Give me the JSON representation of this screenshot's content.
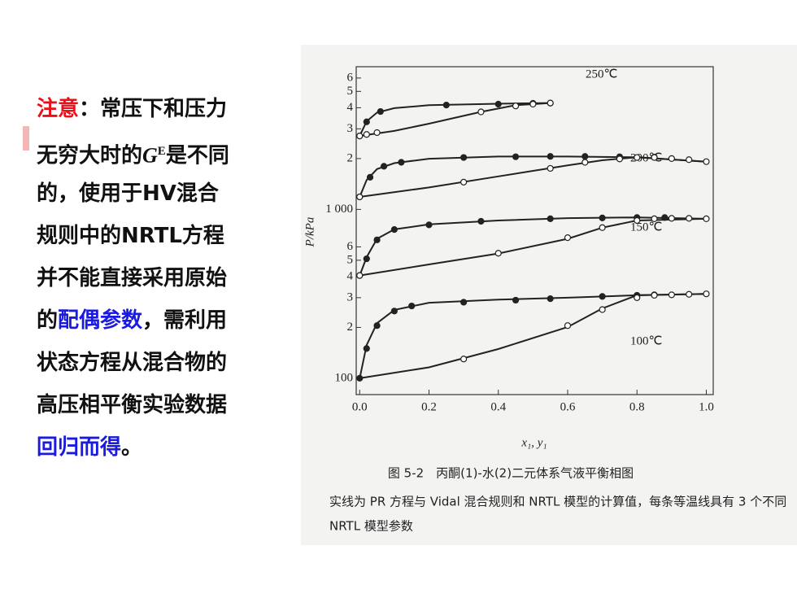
{
  "text": {
    "lines": [
      [
        {
          "text": "注意",
          "color": "#e8101a"
        },
        {
          "text": "：常压下和压力"
        }
      ],
      [
        {
          "text": "无穷大时的"
        },
        {
          "text": "G",
          "style": "italic"
        },
        {
          "text": "E",
          "style": "sup"
        },
        {
          "text": "是不同"
        }
      ],
      [
        {
          "text": "的，使用于HV混合"
        }
      ],
      [
        {
          "text": "规则中的NRTL方程"
        }
      ],
      [
        {
          "text": "并不能直接采用原始"
        }
      ],
      [
        {
          "text": "的"
        },
        {
          "text": "配偶参数",
          "color": "#1a1ae0"
        },
        {
          "text": "，需利用"
        }
      ],
      [
        {
          "text": "状态方程从混合物的"
        }
      ],
      [
        {
          "text": "高压相平衡实验数据"
        }
      ],
      [
        {
          "text": "回归而得",
          "color": "#1a1ae0"
        },
        {
          "text": "。"
        }
      ]
    ]
  },
  "chart_data": {
    "type": "line",
    "ylog": true,
    "ylabel": "P/kPa",
    "xlabel": "x₁, y₁",
    "caption": "图 5-2　丙酮(1)-水(2)二元体系气液平衡相图",
    "note": [
      "实线为 PR 方程与 Vidal 混合规则和 NRTL 模型的计算值，每条等温线具有 3 个不同",
      "NRTL 模型参数"
    ],
    "annotations": [
      "250℃",
      "200℃",
      "150℃",
      "100℃"
    ],
    "xlim": [
      -0.01,
      1.02
    ],
    "ylim": [
      80,
      7000
    ],
    "xticks": [
      {
        "value": 0,
        "label": "0.0"
      },
      {
        "value": 0.2,
        "label": "0.2"
      },
      {
        "value": 0.4,
        "label": "0.4"
      },
      {
        "value": 0.6,
        "label": "0.6"
      },
      {
        "value": 0.8,
        "label": "0.8"
      },
      {
        "value": 1,
        "label": "1.0"
      }
    ],
    "yticks": [
      100,
      {
        "value": 200,
        "label": "2"
      },
      {
        "value": 300,
        "label": "3"
      },
      {
        "value": 400,
        "label": "4"
      },
      {
        "value": 500,
        "label": "5"
      },
      {
        "value": 600,
        "label": "6"
      },
      {
        "value": 1000,
        "label": "1 000"
      },
      {
        "value": 2000,
        "label": "2"
      },
      {
        "value": 3000,
        "label": "3"
      },
      {
        "value": 4000,
        "label": "4"
      },
      {
        "value": 5000,
        "label": "5"
      },
      {
        "value": 6000,
        "label": "6"
      }
    ],
    "color": "#222222",
    "series": [
      {
        "style": "line",
        "x": [
          0,
          0.02,
          0.05,
          0.1,
          0.2,
          0.4,
          0.6,
          0.8,
          1.0
        ],
        "values": [
          100,
          157,
          212,
          254,
          280,
          292,
          300,
          310,
          316
        ]
      },
      {
        "style": "line",
        "x": [
          0,
          0.2,
          0.4,
          0.6,
          0.7,
          0.8,
          1.0
        ],
        "values": [
          100,
          116,
          149,
          201,
          259,
          310,
          316
        ]
      },
      {
        "style": "line",
        "x": [
          0,
          0.02,
          0.05,
          0.1,
          0.2,
          0.4,
          0.6,
          0.8,
          1.0
        ],
        "values": [
          406,
          521,
          670,
          762,
          815,
          860,
          888,
          897,
          880
        ]
      },
      {
        "style": "line",
        "x": [
          0,
          0.2,
          0.4,
          0.6,
          0.7,
          0.8,
          1.0
        ],
        "values": [
          406,
          472,
          548,
          670,
          780,
          860,
          880
        ]
      },
      {
        "style": "line",
        "x": [
          0,
          0.02,
          0.05,
          0.1,
          0.2,
          0.4,
          0.6,
          0.8,
          1.0
        ],
        "values": [
          1186,
          1493,
          1733,
          1880,
          1996,
          2056,
          2056,
          2037,
          1918
        ]
      },
      {
        "style": "line",
        "x": [
          0,
          0.2,
          0.4,
          0.6,
          0.7,
          0.8,
          1.0
        ],
        "values": [
          1186,
          1349,
          1569,
          1823,
          1954,
          2037,
          1918
        ]
      },
      {
        "style": "line",
        "x": [
          0,
          0.02,
          0.05,
          0.1,
          0.2,
          0.4,
          0.55
        ],
        "values": [
          2723,
          3326,
          3744,
          3981,
          4143,
          4226,
          4266
        ]
      },
      {
        "style": "line",
        "x": [
          0,
          0.1,
          0.2,
          0.35,
          0.45,
          0.55
        ],
        "values": [
          2723,
          2917,
          3220,
          3782,
          4143,
          4266
        ]
      },
      {
        "style": "filled",
        "x": [
          0.0,
          0.02,
          0.05,
          0.1,
          0.15,
          0.3,
          0.45,
          0.55,
          0.7,
          0.8,
          0.85
        ],
        "values": [
          100,
          150,
          205,
          250,
          268,
          282,
          290,
          296,
          305,
          310,
          312
        ]
      },
      {
        "style": "open",
        "x": [
          0.3,
          0.6,
          0.7,
          0.8,
          0.85,
          0.9,
          0.95,
          1.0
        ],
        "values": [
          130,
          205,
          255,
          300,
          310,
          312,
          314,
          316
        ]
      },
      {
        "style": "filled",
        "x": [
          0.0,
          0.02,
          0.05,
          0.1,
          0.2,
          0.35,
          0.55,
          0.7,
          0.8,
          0.88
        ],
        "values": [
          406,
          510,
          660,
          760,
          810,
          850,
          880,
          890,
          895,
          895
        ]
      },
      {
        "style": "open",
        "x": [
          0.0,
          0.4,
          0.6,
          0.7,
          0.8,
          0.85,
          0.9,
          0.95,
          1.0
        ],
        "values": [
          406,
          550,
          680,
          780,
          860,
          880,
          885,
          885,
          880
        ]
      },
      {
        "style": "filled",
        "x": [
          0.0,
          0.03,
          0.07,
          0.12,
          0.3,
          0.45,
          0.55,
          0.65,
          0.75,
          0.85
        ],
        "values": [
          1186,
          1550,
          1800,
          1900,
          2030,
          2050,
          2060,
          2060,
          2050,
          2040
        ]
      },
      {
        "style": "open",
        "x": [
          0.0,
          0.3,
          0.55,
          0.65,
          0.75,
          0.8,
          0.85,
          0.9,
          0.95,
          1.0
        ],
        "values": [
          1186,
          1450,
          1750,
          1900,
          1990,
          2030,
          2030,
          2000,
          1970,
          1918
        ]
      },
      {
        "style": "filled",
        "x": [
          0.0,
          0.02,
          0.06,
          0.25,
          0.4,
          0.5,
          0.55
        ],
        "values": [
          2723,
          3300,
          3800,
          4150,
          4200,
          4250,
          4260
        ]
      },
      {
        "style": "open",
        "x": [
          0.0,
          0.02,
          0.05,
          0.35,
          0.45,
          0.5,
          0.55
        ],
        "values": [
          2723,
          2780,
          2850,
          3780,
          4100,
          4200,
          4266
        ]
      }
    ]
  }
}
